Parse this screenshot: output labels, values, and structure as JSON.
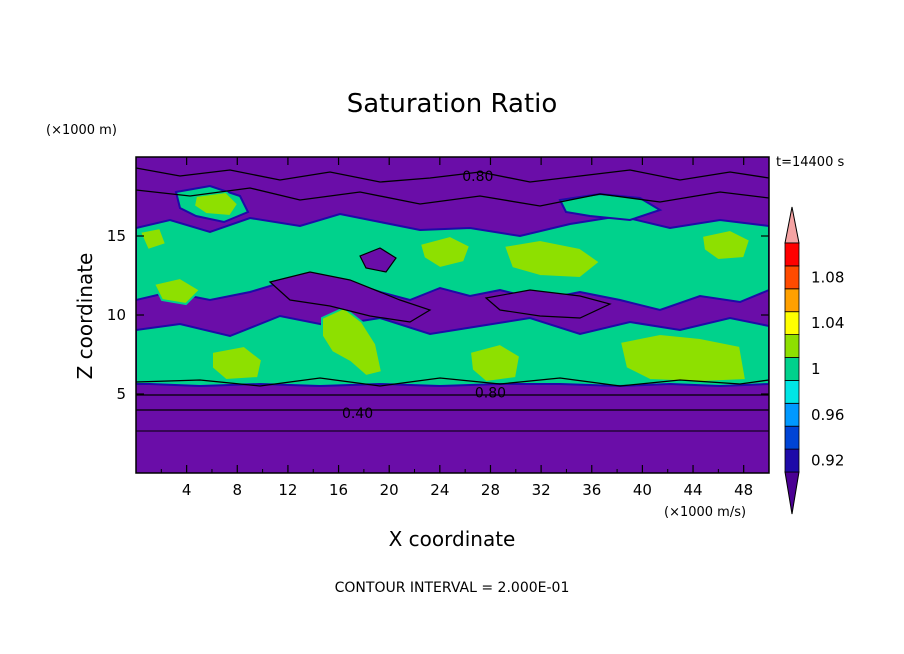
{
  "chart_data": {
    "type": "heatmap",
    "title": "Saturation Ratio",
    "time_label": "t=14400 s",
    "xlabel": "X coordinate",
    "ylabel": "Z coordinate",
    "x_unit_label": "(×1000 m/s)",
    "y_unit_label": "(×1000 m)",
    "xlim": [
      0,
      50
    ],
    "ylim": [
      0,
      20
    ],
    "x_ticks": [
      4,
      8,
      12,
      16,
      20,
      24,
      28,
      32,
      36,
      40,
      44,
      48
    ],
    "y_ticks": [
      5,
      10,
      15
    ],
    "contour_interval_text": "CONTOUR INTERVAL = 2.000E-01",
    "contour_labels": [
      {
        "text": "0.80",
        "x": 27,
        "z": 18.8
      },
      {
        "text": "0.80",
        "x": 28,
        "z": 5.1
      },
      {
        "text": "0.40",
        "x": 17.5,
        "z": 3.8
      }
    ],
    "colorbar": {
      "labels": [
        "1.08",
        "1.04",
        "1",
        "0.96",
        "0.92"
      ],
      "label_values": [
        1.08,
        1.04,
        1.0,
        0.96,
        0.92
      ],
      "levels": [
        0.9,
        0.92,
        0.94,
        0.96,
        0.98,
        1.0,
        1.02,
        1.04,
        1.06,
        1.08,
        1.1
      ],
      "colors": [
        "#4b0093",
        "#1e0aa8",
        "#0044d6",
        "#0099ff",
        "#00e5e5",
        "#00d28c",
        "#8ee000",
        "#ffff00",
        "#ffa000",
        "#ff4b00",
        "#ff0000",
        "#f5a3a3"
      ],
      "extend": "both"
    },
    "field_description_colors": {
      "background": "#6a0da8",
      "cloud_edge": "#00d28c",
      "cloud_core": "#8ee000"
    }
  },
  "footer": {
    "contour_interval": "CONTOUR INTERVAL = 2.000E-01"
  }
}
